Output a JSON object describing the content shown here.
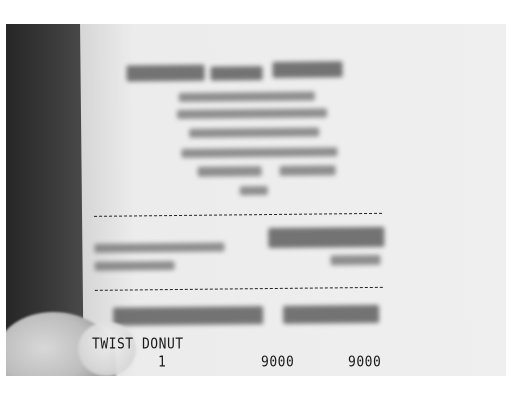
{
  "receipt": {
    "item_name": "TWIST DONUT",
    "quantity": "1",
    "unit_price": "9000",
    "total_price": "9000"
  }
}
